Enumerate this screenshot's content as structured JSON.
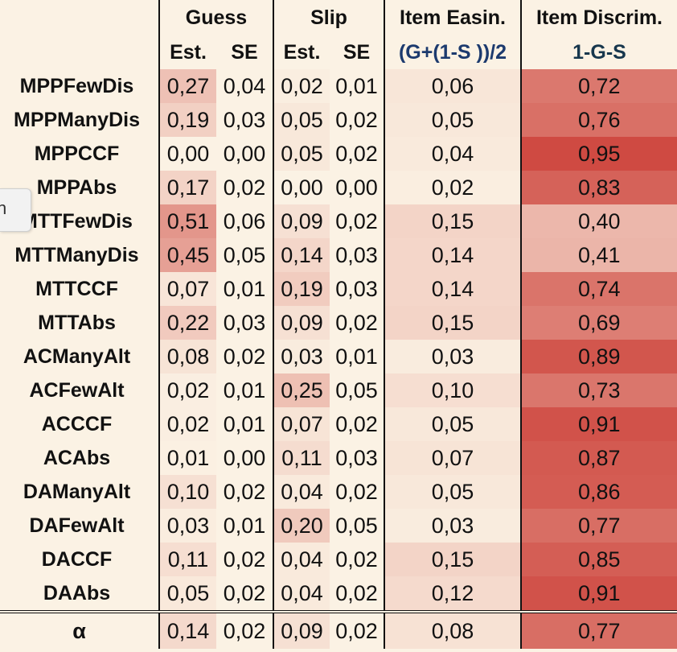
{
  "header": {
    "group_labels": [
      "Guess",
      "Slip",
      "Item Easin.",
      "Item Discrim."
    ],
    "sub_labels": [
      "Est.",
      "SE",
      "Est.",
      "SE",
      "(G+(1-S ))/2",
      "1-G-S"
    ]
  },
  "rows": [
    {
      "label": "MPPFewDis",
      "values": [
        "0,27",
        "0,04",
        "0,02",
        "0,01",
        "0,06",
        "0,72"
      ]
    },
    {
      "label": "MPPManyDis",
      "values": [
        "0,19",
        "0,03",
        "0,05",
        "0,02",
        "0,05",
        "0,76"
      ]
    },
    {
      "label": "MPPCCF",
      "values": [
        "0,00",
        "0,00",
        "0,05",
        "0,02",
        "0,04",
        "0,95"
      ]
    },
    {
      "label": "MPPAbs",
      "values": [
        "0,17",
        "0,02",
        "0,00",
        "0,00",
        "0,02",
        "0,83"
      ]
    },
    {
      "label": "MTTFewDis",
      "values": [
        "0,51",
        "0,06",
        "0,09",
        "0,02",
        "0,15",
        "0,40"
      ]
    },
    {
      "label": "MTTManyDis",
      "values": [
        "0,45",
        "0,05",
        "0,14",
        "0,03",
        "0,14",
        "0,41"
      ]
    },
    {
      "label": "MTTCCF",
      "values": [
        "0,07",
        "0,01",
        "0,19",
        "0,03",
        "0,14",
        "0,74"
      ]
    },
    {
      "label": "MTTAbs",
      "values": [
        "0,22",
        "0,03",
        "0,09",
        "0,02",
        "0,15",
        "0,69"
      ]
    },
    {
      "label": "ACManyAlt",
      "values": [
        "0,08",
        "0,02",
        "0,03",
        "0,01",
        "0,03",
        "0,89"
      ]
    },
    {
      "label": "ACFewAlt",
      "values": [
        "0,02",
        "0,01",
        "0,25",
        "0,05",
        "0,10",
        "0,73"
      ]
    },
    {
      "label": "ACCCF",
      "values": [
        "0,02",
        "0,01",
        "0,07",
        "0,02",
        "0,05",
        "0,91"
      ]
    },
    {
      "label": "ACAbs",
      "values": [
        "0,01",
        "0,00",
        "0,11",
        "0,03",
        "0,07",
        "0,87"
      ]
    },
    {
      "label": "DAManyAlt",
      "values": [
        "0,10",
        "0,02",
        "0,04",
        "0,02",
        "0,05",
        "0,86"
      ]
    },
    {
      "label": "DAFewAlt",
      "values": [
        "0,03",
        "0,01",
        "0,20",
        "0,05",
        "0,03",
        "0,77"
      ]
    },
    {
      "label": "DACCF",
      "values": [
        "0,11",
        "0,02",
        "0,04",
        "0,02",
        "0,15",
        "0,85"
      ]
    },
    {
      "label": "DAAbs",
      "values": [
        "0,05",
        "0,02",
        "0,04",
        "0,02",
        "0,12",
        "0,91"
      ]
    }
  ],
  "summary": {
    "label": "α",
    "values": [
      "0,14",
      "0,02",
      "0,09",
      "0,02",
      "0,08",
      "0,77"
    ]
  },
  "side_tab": {
    "glyph": "n"
  },
  "colors": {
    "background": "#fbf2e4",
    "heat_low": "#fbf2e4",
    "heat_high": "#cf4a42",
    "header_blue": "#1c3a6e"
  }
}
